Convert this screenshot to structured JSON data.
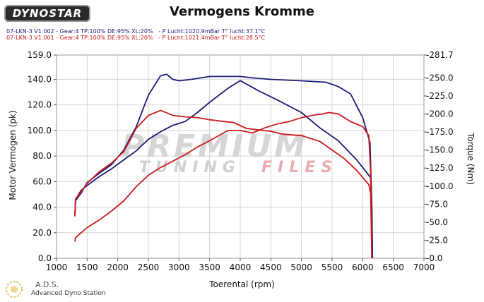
{
  "header": {
    "logo_text": "DYNOSTAR",
    "title": "Vermogens Kromme"
  },
  "runs": [
    {
      "text": "07-LKN-3 V1.002 - Gear:4 TP:100% DE:95% XL:20%   - P Lucht:1020.9mBar T° lucht:37.1°C",
      "color": "#1a1a7a"
    },
    {
      "text": "07-LKN-3 V1.001 - Gear:4 TP:100% DE:95% XL:20%   - P Lucht:1021.4mBar T° lucht:28.5°C",
      "color": "#cc1a1a"
    }
  ],
  "watermark": {
    "main": "PREMIUM",
    "sub_left": "TUNING",
    "sub_right": "FILES"
  },
  "footer": {
    "abbr": "A.D.S.",
    "name": "Advanced Dyno Station"
  },
  "colors": {
    "blue": "#1a1a7a",
    "red": "#cc1a1a",
    "watermark_grey": "#cfcfcf",
    "watermark_red": "#e8a0a0"
  },
  "chart_data": {
    "type": "line",
    "title": "Vermogens Kromme",
    "xlabel": "Toerental (rpm)",
    "ylabel_left": "Motor Vermogen (pk)",
    "ylabel_right": "Torque (Nm)",
    "xlim": [
      1000,
      7000
    ],
    "ylim_left": [
      0,
      159
    ],
    "ylim_right": [
      0,
      281.7
    ],
    "grid": true,
    "x_ticks": [
      "1000",
      "1500",
      "2000",
      "2500",
      "3000",
      "3500",
      "4000",
      "4500",
      "5000",
      "5500",
      "6000",
      "6500",
      "7000"
    ],
    "y_left_ticks": [
      {
        "v": 0,
        "label": "0.0"
      },
      {
        "v": 20,
        "label": "20.0"
      },
      {
        "v": 40,
        "label": "40.0"
      },
      {
        "v": 60,
        "label": "60.0"
      },
      {
        "v": 80,
        "label": "80.0"
      },
      {
        "v": 100,
        "label": "100.0"
      },
      {
        "v": 120,
        "label": "120.0"
      },
      {
        "v": 140,
        "label": "140.0"
      },
      {
        "v": 159,
        "label": "159.0"
      }
    ],
    "y_right_ticks": [
      {
        "v": 0,
        "label": "-0.0"
      },
      {
        "v": 25,
        "label": "-25.0"
      },
      {
        "v": 50,
        "label": "-50.0"
      },
      {
        "v": 75,
        "label": "-75.0"
      },
      {
        "v": 100,
        "label": "-100.0"
      },
      {
        "v": 125,
        "label": "-125.0"
      },
      {
        "v": 150,
        "label": "-150.0"
      },
      {
        "v": 175,
        "label": "-175.0"
      },
      {
        "v": 200,
        "label": "-200.0"
      },
      {
        "v": 225,
        "label": "-225.0"
      },
      {
        "v": 250,
        "label": "-250.0"
      },
      {
        "v": 281.7,
        "label": "-281.7"
      }
    ],
    "series": [
      {
        "color": "#1a1a7a",
        "axis": "right",
        "x": [
          1300,
          1310,
          1400,
          1500,
          1700,
          1900,
          2100,
          2300,
          2500,
          2700,
          2800,
          2900,
          3000,
          3200,
          3500,
          3800,
          4000,
          4200,
          4500,
          5000,
          5400,
          5600,
          5800,
          6000,
          6120,
          6150,
          6160
        ],
        "y": [
          60,
          80,
          90,
          105,
          118,
          130,
          150,
          182,
          226,
          253,
          255,
          248,
          246,
          248,
          252,
          252,
          252,
          250,
          248,
          246,
          244,
          238,
          228,
          195,
          160,
          70,
          0
        ]
      },
      {
        "color": "#1a1a7a",
        "axis": "left",
        "x": [
          1300,
          1310,
          1400,
          1500,
          1700,
          1900,
          2100,
          2300,
          2500,
          2700,
          2900,
          3100,
          3300,
          3500,
          3800,
          4000,
          4300,
          4600,
          5000,
          5300,
          5600,
          5900,
          6100,
          6130,
          6150,
          6160
        ],
        "y": [
          33,
          46,
          53,
          57,
          64,
          70,
          77,
          84,
          93,
          99,
          104,
          107,
          114,
          122,
          133,
          139,
          131,
          124,
          114,
          102,
          92,
          77,
          65,
          63,
          30,
          0
        ]
      },
      {
        "color": "#cc1a1a",
        "axis": "right",
        "x": [
          1300,
          1310,
          1400,
          1500,
          1700,
          1900,
          2100,
          2300,
          2500,
          2700,
          2900,
          3100,
          3300,
          3500,
          3700,
          3900,
          4100,
          4300,
          4500,
          4700,
          5000,
          5300,
          5500,
          5700,
          5900,
          6000,
          6100,
          6130,
          6150
        ],
        "y": [
          58,
          82,
          92,
          104,
          120,
          132,
          148,
          180,
          198,
          205,
          198,
          196,
          195,
          192,
          190,
          188,
          180,
          178,
          176,
          172,
          170,
          162,
          150,
          138,
          122,
          112,
          102,
          90,
          0
        ]
      },
      {
        "color": "#cc1a1a",
        "axis": "left",
        "x": [
          1300,
          1310,
          1400,
          1500,
          1700,
          1900,
          2100,
          2300,
          2500,
          2700,
          2900,
          3100,
          3300,
          3500,
          3800,
          4000,
          4200,
          4400,
          4600,
          4800,
          5000,
          5200,
          5350,
          5450,
          5600,
          5800,
          6000,
          6100,
          6130,
          6150
        ],
        "y": [
          13,
          16,
          20,
          24,
          30,
          37,
          45,
          56,
          65,
          71,
          76,
          81,
          87,
          92,
          100,
          100,
          98,
          102,
          105,
          107,
          110,
          112,
          113,
          114,
          113,
          107,
          103,
          96,
          66,
          0
        ]
      }
    ]
  }
}
